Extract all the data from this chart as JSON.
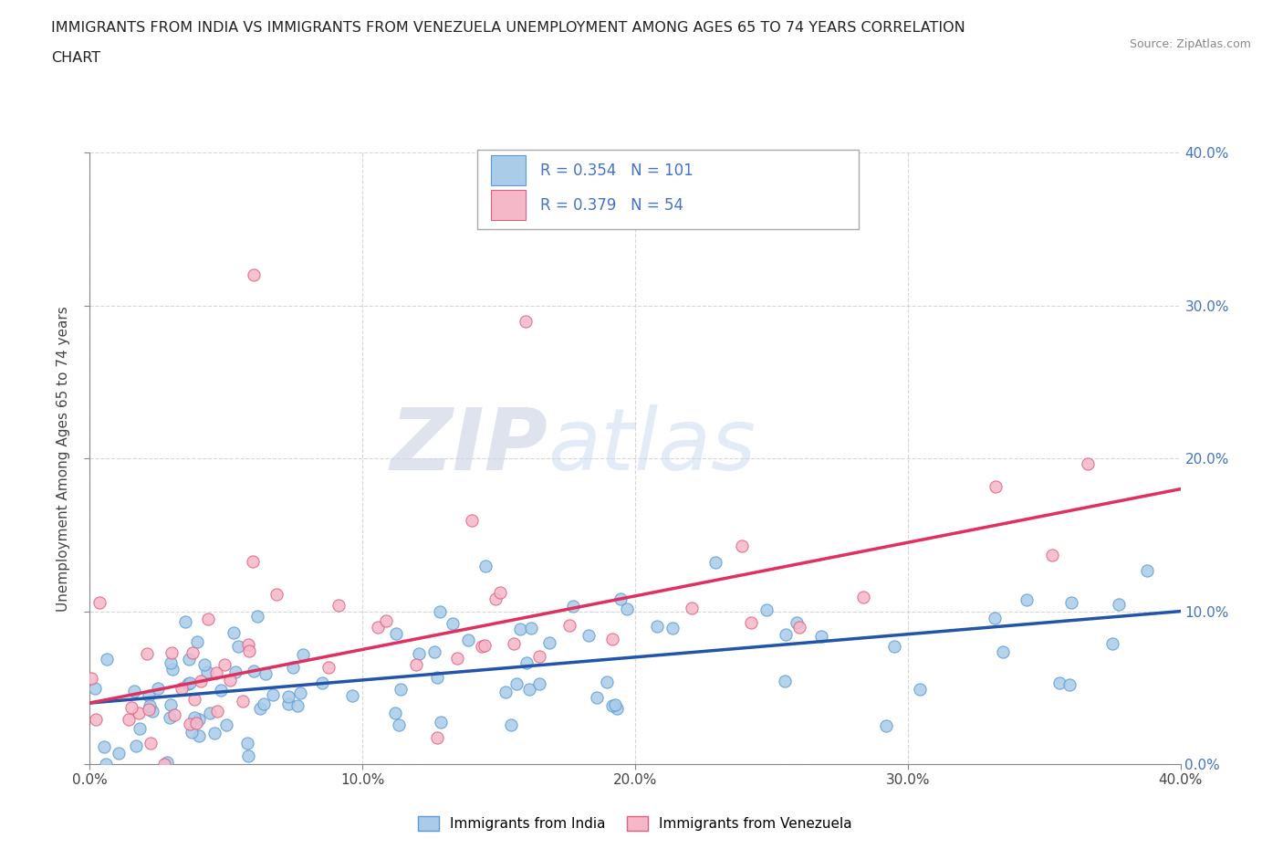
{
  "title_line1": "IMMIGRANTS FROM INDIA VS IMMIGRANTS FROM VENEZUELA UNEMPLOYMENT AMONG AGES 65 TO 74 YEARS CORRELATION",
  "title_line2": "CHART",
  "source_text": "Source: ZipAtlas.com",
  "ylabel": "Unemployment Among Ages 65 to 74 years",
  "xlim": [
    0.0,
    0.4
  ],
  "ylim": [
    0.0,
    0.4
  ],
  "xtick_vals": [
    0.0,
    0.1,
    0.2,
    0.3,
    0.4
  ],
  "ytick_vals": [
    0.0,
    0.1,
    0.2,
    0.3,
    0.4
  ],
  "india_color": "#aacce8",
  "india_edge_color": "#5b9bd5",
  "venezuela_color": "#f5b8c8",
  "venezuela_edge_color": "#e06080",
  "india_line_color": "#2255aa",
  "venezuela_line_color": "#e03060",
  "india_R": 0.354,
  "india_N": 101,
  "venezuela_R": 0.379,
  "venezuela_N": 54,
  "watermark_zip": "ZIP",
  "watermark_atlas": "atlas",
  "background_color": "#ffffff",
  "grid_color": "#cccccc",
  "right_axis_color": "#4472c4",
  "india_trend_start_y": 0.04,
  "india_trend_end_y": 0.1,
  "venezuela_trend_start_y": 0.04,
  "venezuela_trend_end_y": 0.18,
  "legend_india_label": "Immigrants from India",
  "legend_venezuela_label": "Immigrants from Venezuela"
}
